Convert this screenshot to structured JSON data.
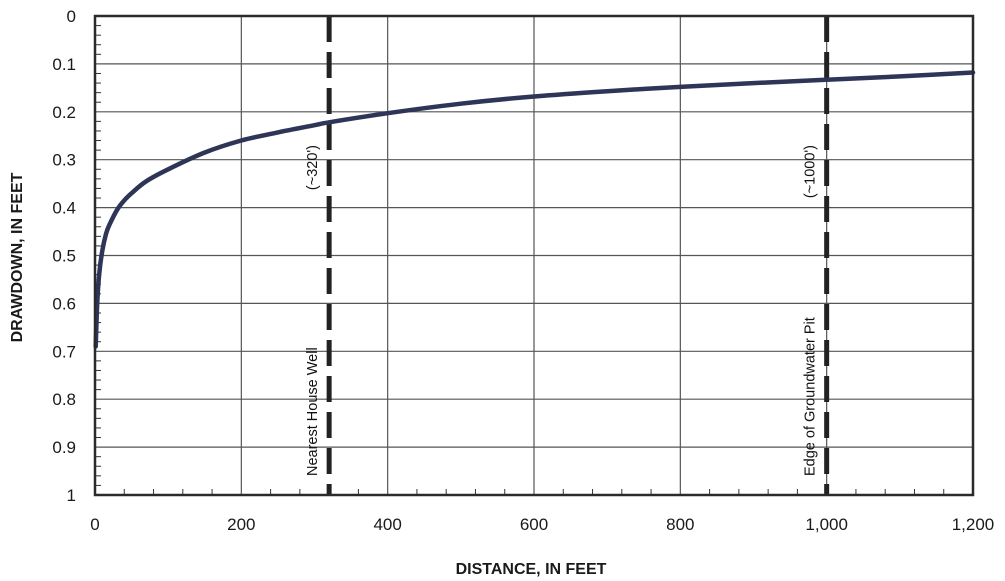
{
  "chart_data": {
    "type": "line",
    "title": "",
    "xlabel": "DISTANCE, IN FEET",
    "ylabel": "DRAWDOWN, IN FEET",
    "xlim": [
      0,
      1200
    ],
    "ylim": [
      0,
      1
    ],
    "y_inverted": true,
    "grid": true,
    "x_ticks": [
      0,
      200,
      400,
      600,
      800,
      1000,
      1200
    ],
    "x_tick_labels": [
      "0",
      "200",
      "400",
      "600",
      "800",
      "1,000",
      "1,200"
    ],
    "y_ticks": [
      0,
      0.1,
      0.2,
      0.3,
      0.4,
      0.5,
      0.6,
      0.7,
      0.8,
      0.9,
      1
    ],
    "y_tick_labels": [
      "0",
      "0.1",
      "0.2",
      "0.3",
      "0.4",
      "0.5",
      "0.6",
      "0.7",
      "0.8",
      "0.9",
      "1"
    ],
    "series": [
      {
        "color": "#2e3557",
        "x": [
          1,
          3,
          6,
          10,
          15,
          20,
          30,
          40,
          50,
          70,
          100,
          150,
          200,
          250,
          300,
          320,
          400,
          500,
          600,
          700,
          800,
          900,
          1000,
          1100,
          1200
        ],
        "y": [
          0.69,
          0.6,
          0.535,
          0.49,
          0.455,
          0.435,
          0.405,
          0.385,
          0.37,
          0.345,
          0.32,
          0.285,
          0.26,
          0.243,
          0.228,
          0.222,
          0.203,
          0.183,
          0.168,
          0.157,
          0.148,
          0.14,
          0.133,
          0.126,
          0.118
        ]
      }
    ],
    "annotations": [
      {
        "x": 320,
        "label": "Nearest House Well",
        "sublabel": "(~320')"
      },
      {
        "x": 1000,
        "label": "Edge of Groundwater Pit",
        "sublabel": "(~1000')"
      }
    ]
  }
}
